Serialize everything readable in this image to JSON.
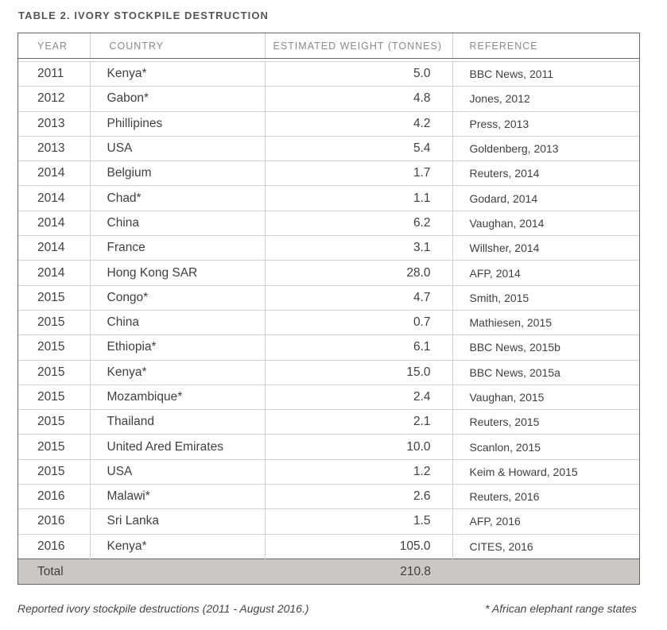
{
  "title": "TABLE 2. IVORY STOCKPILE DESTRUCTION",
  "columns": {
    "year": "YEAR",
    "country": "COUNTRY",
    "weight": "ESTIMATED WEIGHT (TONNES)",
    "reference": "REFERENCE"
  },
  "rows": [
    {
      "year": "2011",
      "country": "Kenya*",
      "weight": "5.0",
      "reference": "BBC News, 2011"
    },
    {
      "year": "2012",
      "country": "Gabon*",
      "weight": "4.8",
      "reference": "Jones, 2012"
    },
    {
      "year": "2013",
      "country": "Phillipines",
      "weight": "4.2",
      "reference": "Press, 2013"
    },
    {
      "year": "2013",
      "country": "USA",
      "weight": "5.4",
      "reference": "Goldenberg, 2013"
    },
    {
      "year": "2014",
      "country": "Belgium",
      "weight": "1.7",
      "reference": "Reuters, 2014"
    },
    {
      "year": "2014",
      "country": "Chad*",
      "weight": "1.1",
      "reference": "Godard, 2014"
    },
    {
      "year": "2014",
      "country": "China",
      "weight": "6.2",
      "reference": "Vaughan, 2014"
    },
    {
      "year": "2014",
      "country": "France",
      "weight": "3.1",
      "reference": "Willsher, 2014"
    },
    {
      "year": "2014",
      "country": "Hong Kong SAR",
      "weight": "28.0",
      "reference": "AFP, 2014"
    },
    {
      "year": "2015",
      "country": "Congo*",
      "weight": "4.7",
      "reference": "Smith, 2015"
    },
    {
      "year": "2015",
      "country": "China",
      "weight": "0.7",
      "reference": "Mathiesen, 2015"
    },
    {
      "year": "2015",
      "country": "Ethiopia*",
      "weight": "6.1",
      "reference": "BBC News, 2015b"
    },
    {
      "year": "2015",
      "country": "Kenya*",
      "weight": "15.0",
      "reference": "BBC News, 2015a"
    },
    {
      "year": "2015",
      "country": "Mozambique*",
      "weight": "2.4",
      "reference": "Vaughan, 2015"
    },
    {
      "year": "2015",
      "country": "Thailand",
      "weight": "2.1",
      "reference": "Reuters, 2015"
    },
    {
      "year": "2015",
      "country": "United Ared Emirates",
      "weight": "10.0",
      "reference": "Scanlon, 2015"
    },
    {
      "year": "2015",
      "country": "USA",
      "weight": "1.2",
      "reference": "Keim & Howard, 2015"
    },
    {
      "year": "2016",
      "country": "Malawi*",
      "weight": "2.6",
      "reference": "Reuters, 2016"
    },
    {
      "year": "2016",
      "country": "Sri Lanka",
      "weight": "1.5",
      "reference": "AFP, 2016"
    },
    {
      "year": "2016",
      "country": "Kenya*",
      "weight": "105.0",
      "reference": "CITES, 2016"
    }
  ],
  "total": {
    "label": "Total",
    "weight": "210.8"
  },
  "caption": "Reported ivory stockpile destructions (2011 - August 2016.)",
  "footnote": "* African elephant range states",
  "colors": {
    "total_row_bg": "#cbc7c4",
    "border": "#666666"
  }
}
